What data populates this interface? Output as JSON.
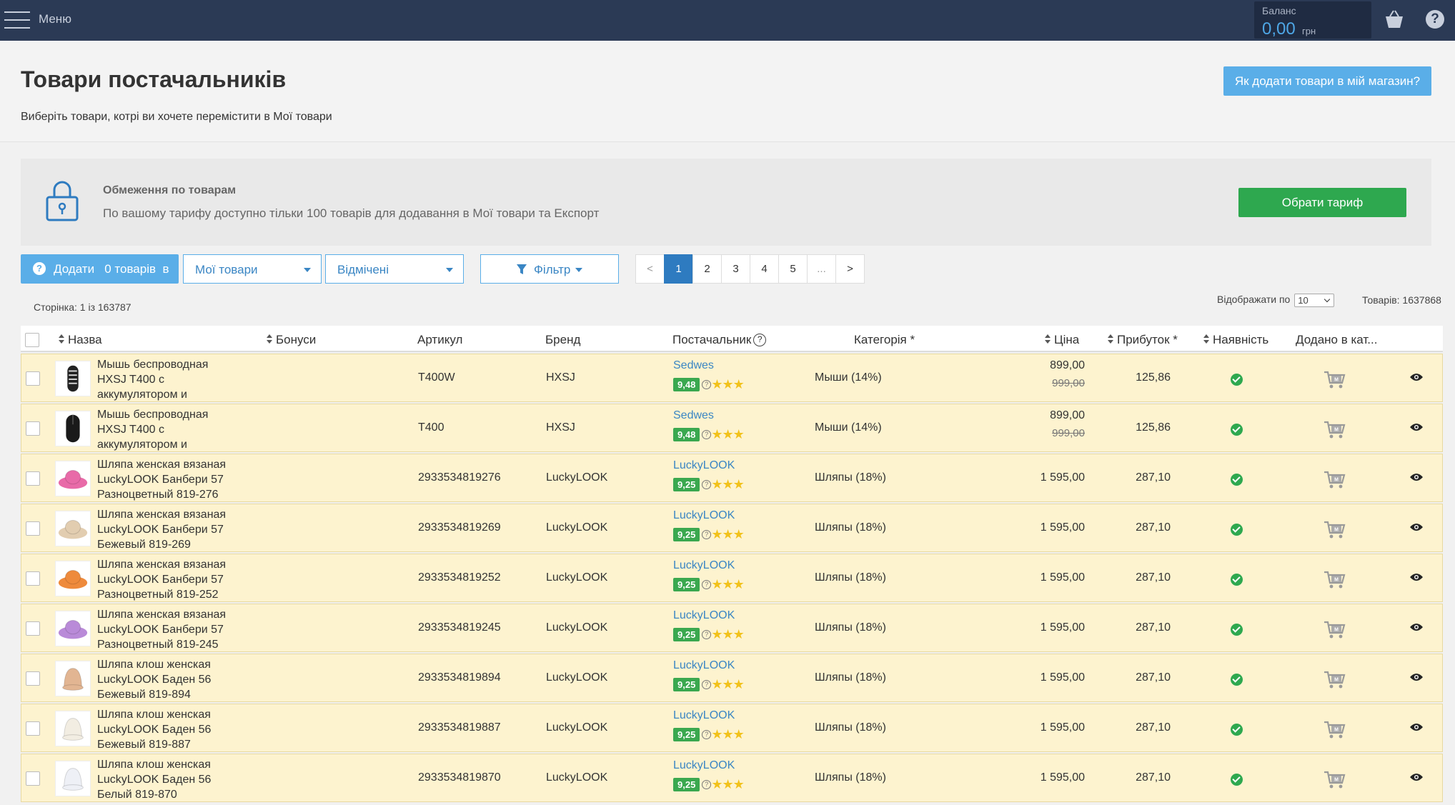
{
  "topbar": {
    "menu_label": "Меню",
    "balance_label": "Баланс",
    "balance_value": "0,00",
    "balance_currency": "грн",
    "help_glyph": "?"
  },
  "header": {
    "title": "Товари постачальників",
    "subtitle": "Виберіть товари, котрі ви хочете перемістити в Мої товари",
    "how_button": "Як додати товари в мій магазин?"
  },
  "notice": {
    "title": "Обмеження по товарам",
    "text": "По вашому тарифу доступно тільки 100 товарів для додавання в Мої товари та Експорт",
    "tariff_button": "Обрати тариф"
  },
  "toolbar": {
    "add_label": "Додати   0 товарів  в",
    "target_dropdown": "Мої товари",
    "status_dropdown": "Відмічені",
    "filter_label": "Фільтр"
  },
  "pagination": {
    "prev": "<",
    "pages": [
      "1",
      "2",
      "3",
      "4",
      "5",
      "..."
    ],
    "next": ">",
    "active": "1"
  },
  "info": {
    "page_info": "Сторінка: 1 із 163787",
    "per_page_label": "Відображати по",
    "per_page_value": "10",
    "total": "Товарів: 1637868"
  },
  "table": {
    "columns": {
      "name": "Назва",
      "bonus": "Бонуси",
      "sku": "Артикул",
      "brand": "Бренд",
      "supplier": "Постачальник",
      "category": "Категорія *",
      "price": "Ціна",
      "profit": "Прибуток *",
      "availability": "Наявність",
      "added": "Додано в кат..."
    },
    "rows": [
      {
        "name": "Мышь беспроводная HXSJ T400 с аккумулятором и",
        "sku": "T400W",
        "brand": "HXSJ",
        "supplier": "Sedwes",
        "score": "9,48",
        "category": "Мыши (14%)",
        "price": "899,00",
        "old_price": "999,00",
        "profit": "125,86"
      },
      {
        "name": "Мышь беспроводная HXSJ T400 с аккумулятором и",
        "sku": "T400",
        "brand": "HXSJ",
        "supplier": "Sedwes",
        "score": "9,48",
        "category": "Мыши (14%)",
        "price": "899,00",
        "old_price": "999,00",
        "profit": "125,86"
      },
      {
        "name": "Шляпа женская вязаная LuckyLOOK Банбери 57 Разноцветный 819-276",
        "sku": "2933534819276",
        "brand": "LuckyLOOK",
        "supplier": "LuckyLOOK",
        "score": "9,25",
        "category": "Шляпы (18%)",
        "price": "1 595,00",
        "old_price": "",
        "profit": "287,10"
      },
      {
        "name": "Шляпа женская вязаная LuckyLOOK Банбери 57 Бежевый 819-269",
        "sku": "2933534819269",
        "brand": "LuckyLOOK",
        "supplier": "LuckyLOOK",
        "score": "9,25",
        "category": "Шляпы (18%)",
        "price": "1 595,00",
        "old_price": "",
        "profit": "287,10"
      },
      {
        "name": "Шляпа женская вязаная LuckyLOOK Банбери 57 Разноцветный 819-252",
        "sku": "2933534819252",
        "brand": "LuckyLOOK",
        "supplier": "LuckyLOOK",
        "score": "9,25",
        "category": "Шляпы (18%)",
        "price": "1 595,00",
        "old_price": "",
        "profit": "287,10"
      },
      {
        "name": "Шляпа женская вязаная LuckyLOOK Банбери 57 Разноцветный 819-245",
        "sku": "2933534819245",
        "brand": "LuckyLOOK",
        "supplier": "LuckyLOOK",
        "score": "9,25",
        "category": "Шляпы (18%)",
        "price": "1 595,00",
        "old_price": "",
        "profit": "287,10"
      },
      {
        "name": "Шляпа клош женская LuckyLOOK Баден 56 Бежевый 819-894",
        "sku": "2933534819894",
        "brand": "LuckyLOOK",
        "supplier": "LuckyLOOK",
        "score": "9,25",
        "category": "Шляпы (18%)",
        "price": "1 595,00",
        "old_price": "",
        "profit": "287,10"
      },
      {
        "name": "Шляпа клош женская LuckyLOOK Баден 56 Бежевый 819-887",
        "sku": "2933534819887",
        "brand": "LuckyLOOK",
        "supplier": "LuckyLOOK",
        "score": "9,25",
        "category": "Шляпы (18%)",
        "price": "1 595,00",
        "old_price": "",
        "profit": "287,10"
      },
      {
        "name": "Шляпа клош женская LuckyLOOK Баден 56 Белый 819-870",
        "sku": "2933534819870",
        "brand": "LuckyLOOK",
        "supplier": "LuckyLOOK",
        "score": "9,25",
        "category": "Шляпы (18%)",
        "price": "1 595,00",
        "old_price": "",
        "profit": "287,10"
      }
    ]
  },
  "colors": {
    "topbar": "#2b3a55",
    "accent": "#5aaee8",
    "success": "#2ea84f",
    "row_highlight": "#fdf3cf",
    "link": "#3a86c4"
  }
}
